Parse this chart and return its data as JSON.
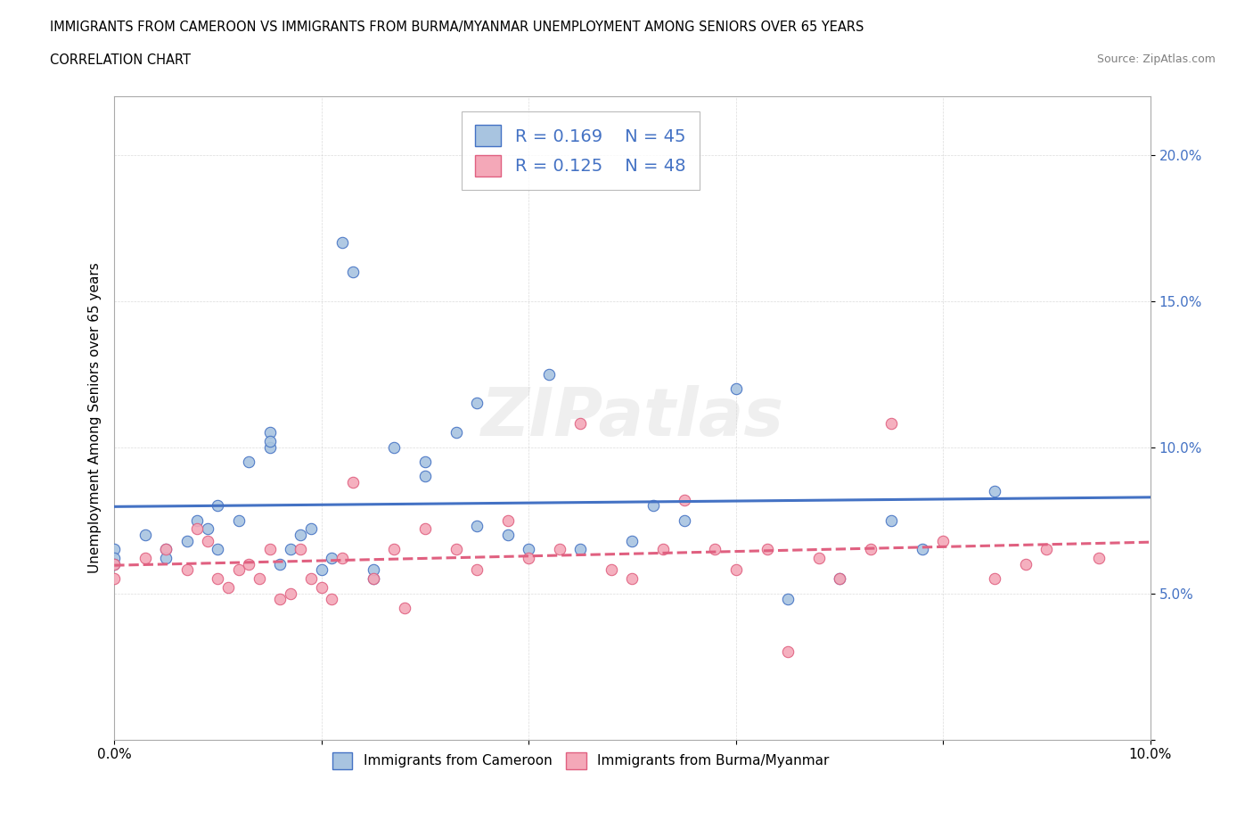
{
  "title_line1": "IMMIGRANTS FROM CAMEROON VS IMMIGRANTS FROM BURMA/MYANMAR UNEMPLOYMENT AMONG SENIORS OVER 65 YEARS",
  "title_line2": "CORRELATION CHART",
  "source_text": "Source: ZipAtlas.com",
  "ylabel": "Unemployment Among Seniors over 65 years",
  "legend_label1": "Immigrants from Cameroon",
  "legend_label2": "Immigrants from Burma/Myanmar",
  "R1": "0.169",
  "N1": "45",
  "R2": "0.125",
  "N2": "48",
  "color1": "#a8c4e0",
  "color2": "#f4a8b8",
  "line_color1": "#4472c4",
  "line_color2": "#e06080",
  "watermark_text": "ZIPatlas",
  "scatter1_x": [
    0.0,
    0.0,
    0.0,
    0.003,
    0.005,
    0.005,
    0.007,
    0.008,
    0.009,
    0.01,
    0.01,
    0.012,
    0.013,
    0.015,
    0.015,
    0.015,
    0.016,
    0.017,
    0.018,
    0.019,
    0.02,
    0.021,
    0.022,
    0.023,
    0.025,
    0.025,
    0.027,
    0.03,
    0.03,
    0.033,
    0.035,
    0.035,
    0.038,
    0.04,
    0.042,
    0.045,
    0.05,
    0.052,
    0.055,
    0.06,
    0.065,
    0.07,
    0.075,
    0.078,
    0.085
  ],
  "scatter1_y": [
    0.065,
    0.062,
    0.06,
    0.07,
    0.065,
    0.062,
    0.068,
    0.075,
    0.072,
    0.065,
    0.08,
    0.075,
    0.095,
    0.105,
    0.1,
    0.102,
    0.06,
    0.065,
    0.07,
    0.072,
    0.058,
    0.062,
    0.17,
    0.16,
    0.055,
    0.058,
    0.1,
    0.09,
    0.095,
    0.105,
    0.115,
    0.073,
    0.07,
    0.065,
    0.125,
    0.065,
    0.068,
    0.08,
    0.075,
    0.12,
    0.048,
    0.055,
    0.075,
    0.065,
    0.085
  ],
  "scatter2_x": [
    0.0,
    0.0,
    0.003,
    0.005,
    0.007,
    0.008,
    0.009,
    0.01,
    0.011,
    0.012,
    0.013,
    0.014,
    0.015,
    0.016,
    0.017,
    0.018,
    0.019,
    0.02,
    0.021,
    0.022,
    0.023,
    0.025,
    0.027,
    0.028,
    0.03,
    0.033,
    0.035,
    0.038,
    0.04,
    0.043,
    0.045,
    0.048,
    0.05,
    0.053,
    0.055,
    0.058,
    0.06,
    0.063,
    0.065,
    0.068,
    0.07,
    0.073,
    0.075,
    0.08,
    0.085,
    0.088,
    0.09,
    0.095
  ],
  "scatter2_y": [
    0.06,
    0.055,
    0.062,
    0.065,
    0.058,
    0.072,
    0.068,
    0.055,
    0.052,
    0.058,
    0.06,
    0.055,
    0.065,
    0.048,
    0.05,
    0.065,
    0.055,
    0.052,
    0.048,
    0.062,
    0.088,
    0.055,
    0.065,
    0.045,
    0.072,
    0.065,
    0.058,
    0.075,
    0.062,
    0.065,
    0.108,
    0.058,
    0.055,
    0.065,
    0.082,
    0.065,
    0.058,
    0.065,
    0.03,
    0.062,
    0.055,
    0.065,
    0.108,
    0.068,
    0.055,
    0.06,
    0.065,
    0.062
  ],
  "xlim": [
    0.0,
    0.1
  ],
  "ylim": [
    0.0,
    0.22
  ],
  "figsize": [
    14.06,
    9.3
  ],
  "dpi": 100
}
